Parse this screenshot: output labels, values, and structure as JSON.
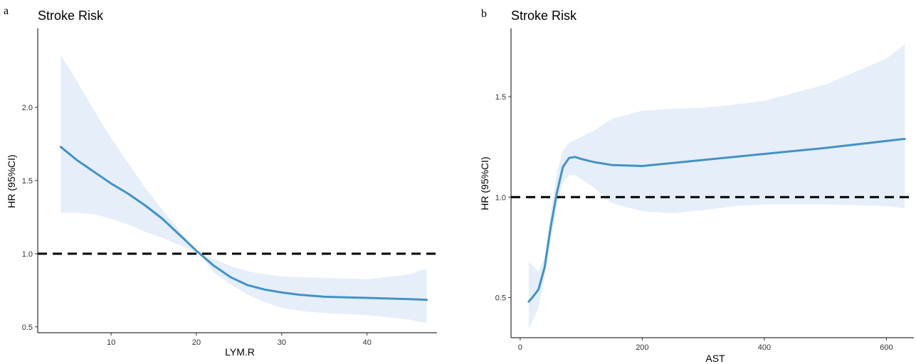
{
  "chart_data": [
    {
      "panel": "a",
      "type": "line",
      "title": "Stroke Risk",
      "xlabel": "LYM.R",
      "ylabel": "HR (95%CI)",
      "xlim": [
        1.4,
        48.2
      ],
      "ylim": [
        0.46,
        2.54
      ],
      "xticks": [
        10,
        20,
        30,
        40
      ],
      "xtick_labels": [
        "10",
        "20",
        "30",
        "40"
      ],
      "yticks": [
        0.5,
        1.0,
        1.5,
        2.0
      ],
      "ytick_labels": [
        "0.5",
        "1.0",
        "1.5",
        "2.0"
      ],
      "reference_line": 1.0,
      "grid": false,
      "colors": {
        "line": "#4292c6",
        "band": "#e5eef9",
        "reference": "#000000"
      },
      "series": [
        {
          "x": [
            4.1,
            6,
            8,
            10,
            12,
            14,
            16,
            18,
            20,
            20.4,
            22,
            24,
            26,
            28,
            30,
            32,
            35,
            40,
            45,
            47
          ],
          "y": [
            1.73,
            1.64,
            1.56,
            1.48,
            1.41,
            1.33,
            1.24,
            1.13,
            1.02,
            1.0,
            0.92,
            0.84,
            0.785,
            0.755,
            0.735,
            0.72,
            0.706,
            0.698,
            0.69,
            0.685
          ],
          "upper": [
            2.36,
            2.18,
            1.98,
            1.79,
            1.62,
            1.45,
            1.3,
            1.16,
            1.03,
            1.0,
            0.965,
            0.915,
            0.88,
            0.86,
            0.845,
            0.84,
            0.835,
            0.825,
            0.86,
            0.9
          ],
          "lower": [
            1.28,
            1.28,
            1.27,
            1.24,
            1.2,
            1.15,
            1.11,
            1.06,
            1.005,
            1.0,
            0.875,
            0.79,
            0.72,
            0.67,
            0.63,
            0.61,
            0.595,
            0.58,
            0.55,
            0.525
          ]
        }
      ]
    },
    {
      "panel": "b",
      "type": "line",
      "title": "Stroke Risk",
      "xlabel": "AST",
      "ylabel": "HR (95%CI)",
      "xlim": [
        -15,
        645
      ],
      "ylim": [
        0.3,
        1.84
      ],
      "xticks": [
        0,
        200,
        400,
        600
      ],
      "xtick_labels": [
        "0",
        "200",
        "400",
        "600"
      ],
      "yticks": [
        0.5,
        1.0,
        1.5
      ],
      "ytick_labels": [
        "0.5",
        "1.0",
        "1.5"
      ],
      "reference_line": 1.0,
      "grid": false,
      "colors": {
        "line": "#4292c6",
        "band": "#e5eef9",
        "reference": "#000000"
      },
      "series": [
        {
          "x": [
            14,
            20,
            30,
            40,
            50,
            60,
            70,
            80,
            90,
            100,
            120,
            150,
            200,
            250,
            300,
            350,
            400,
            500,
            600,
            630
          ],
          "y": [
            0.48,
            0.5,
            0.54,
            0.65,
            0.85,
            1.02,
            1.15,
            1.195,
            1.2,
            1.19,
            1.175,
            1.16,
            1.155,
            1.17,
            1.185,
            1.2,
            1.215,
            1.245,
            1.28,
            1.29
          ],
          "upper": [
            0.68,
            0.66,
            0.63,
            0.7,
            0.92,
            1.12,
            1.23,
            1.27,
            1.285,
            1.3,
            1.33,
            1.39,
            1.43,
            1.44,
            1.445,
            1.46,
            1.48,
            1.56,
            1.69,
            1.76
          ],
          "lower": [
            0.34,
            0.38,
            0.45,
            0.6,
            0.78,
            0.95,
            1.07,
            1.11,
            1.11,
            1.09,
            1.05,
            0.97,
            0.93,
            0.92,
            0.935,
            0.955,
            0.965,
            0.965,
            0.955,
            0.945
          ]
        }
      ]
    }
  ]
}
